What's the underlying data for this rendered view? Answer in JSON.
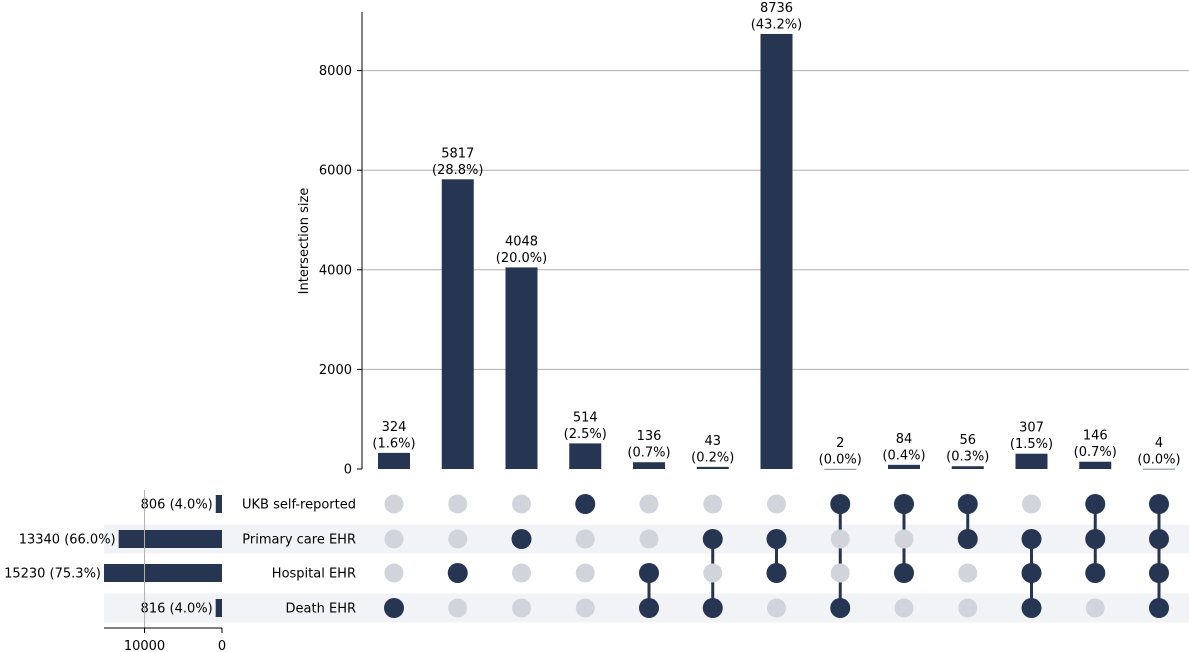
{
  "colors": {
    "bar": "#263552",
    "dot_active": "#263552",
    "dot_inactive": "#d1d5db",
    "stripe": "#f2f3f6",
    "grid": "#b0b0b0",
    "axis": "#000000"
  },
  "chart_data": {
    "type": "bar",
    "subtype": "upset",
    "ylabel": "Intersection size",
    "ylim": [
      0,
      9200
    ],
    "yticks": [
      "0",
      "2000",
      "4000",
      "6000",
      "8000"
    ],
    "ytick_values": [
      0,
      2000,
      4000,
      6000,
      8000
    ],
    "grid": true,
    "sets": [
      {
        "name": "UKB self-reported",
        "size": 806,
        "label": "806 (4.0%)"
      },
      {
        "name": "Primary care EHR",
        "size": 13340,
        "label": "13340 (66.0%)"
      },
      {
        "name": "Hospital EHR",
        "size": 15230,
        "label": "15230 (75.3%)"
      },
      {
        "name": "Death EHR",
        "size": 816,
        "label": "816 (4.0%)"
      }
    ],
    "set_size_axis": {
      "xlim_max": 15230,
      "ticks": [
        "10000",
        "0"
      ],
      "tick_values": [
        10000,
        0
      ]
    },
    "intersections": [
      {
        "value": 324,
        "count_label": "324",
        "pct_label": "(1.6%)",
        "members": [
          "Death EHR"
        ]
      },
      {
        "value": 5817,
        "count_label": "5817",
        "pct_label": "(28.8%)",
        "members": [
          "Hospital EHR"
        ]
      },
      {
        "value": 4048,
        "count_label": "4048",
        "pct_label": "(20.0%)",
        "members": [
          "Primary care EHR"
        ]
      },
      {
        "value": 514,
        "count_label": "514",
        "pct_label": "(2.5%)",
        "members": [
          "UKB self-reported"
        ]
      },
      {
        "value": 136,
        "count_label": "136",
        "pct_label": "(0.7%)",
        "members": [
          "Hospital EHR",
          "Death EHR"
        ]
      },
      {
        "value": 43,
        "count_label": "43",
        "pct_label": "(0.2%)",
        "members": [
          "Primary care EHR",
          "Death EHR"
        ]
      },
      {
        "value": 8736,
        "count_label": "8736",
        "pct_label": "(43.2%)",
        "members": [
          "Primary care EHR",
          "Hospital EHR"
        ]
      },
      {
        "value": 2,
        "count_label": "2",
        "pct_label": "(0.0%)",
        "members": [
          "UKB self-reported",
          "Death EHR"
        ]
      },
      {
        "value": 84,
        "count_label": "84",
        "pct_label": "(0.4%)",
        "members": [
          "UKB self-reported",
          "Hospital EHR"
        ]
      },
      {
        "value": 56,
        "count_label": "56",
        "pct_label": "(0.3%)",
        "members": [
          "UKB self-reported",
          "Primary care EHR"
        ]
      },
      {
        "value": 307,
        "count_label": "307",
        "pct_label": "(1.5%)",
        "members": [
          "Primary care EHR",
          "Hospital EHR",
          "Death EHR"
        ]
      },
      {
        "value": 146,
        "count_label": "146",
        "pct_label": "(0.7%)",
        "members": [
          "UKB self-reported",
          "Primary care EHR",
          "Hospital EHR"
        ]
      },
      {
        "value": 4,
        "count_label": "4",
        "pct_label": "(0.0%)",
        "members": [
          "UKB self-reported",
          "Primary care EHR",
          "Hospital EHR",
          "Death EHR"
        ]
      }
    ]
  }
}
